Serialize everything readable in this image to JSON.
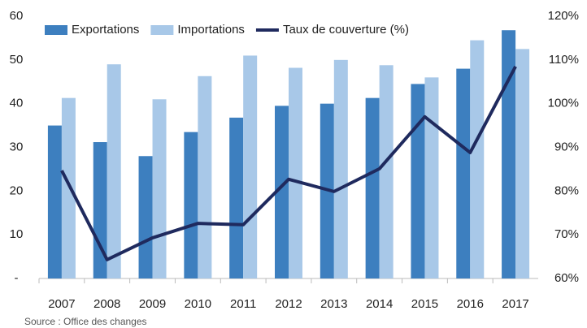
{
  "chart_data": {
    "type": "bar-line",
    "categories": [
      "2007",
      "2008",
      "2009",
      "2010",
      "2011",
      "2012",
      "2013",
      "2014",
      "2015",
      "2016",
      "2017"
    ],
    "series": [
      {
        "name": "Exportations",
        "color": "#3d7fbf",
        "type": "bar",
        "values": [
          35,
          31.2,
          28,
          33.5,
          36.8,
          39.5,
          40,
          41.3,
          44.5,
          48,
          56.8
        ]
      },
      {
        "name": "Importations",
        "color": "#a8c8e8",
        "type": "bar",
        "values": [
          41.3,
          49,
          41,
          46.3,
          51,
          48.2,
          50,
          48.8,
          46,
          54.5,
          52.5
        ]
      },
      {
        "name": "Taux de couverture (%)",
        "color": "#1f2a5e",
        "type": "line",
        "axis": "y2",
        "values": [
          84.7,
          64.3,
          69.3,
          72.6,
          72.3,
          82.7,
          79.9,
          85.1,
          97,
          88.8,
          108.5
        ]
      }
    ],
    "ylim": [
      0,
      60
    ],
    "yticks": [
      {
        "value": 0,
        "label": "-"
      },
      10,
      20,
      30,
      40,
      50,
      60
    ],
    "y2lim": [
      60,
      120
    ],
    "y2ticks": [
      {
        "value": 60,
        "label": "60%"
      },
      {
        "value": 70,
        "label": "70%"
      },
      {
        "value": 80,
        "label": "80%"
      },
      {
        "value": 90,
        "label": "90%"
      },
      {
        "value": 100,
        "label": "100%"
      },
      {
        "value": 110,
        "label": "110%"
      },
      {
        "value": 120,
        "label": "120%"
      }
    ],
    "source": "Source : Office des changes"
  }
}
